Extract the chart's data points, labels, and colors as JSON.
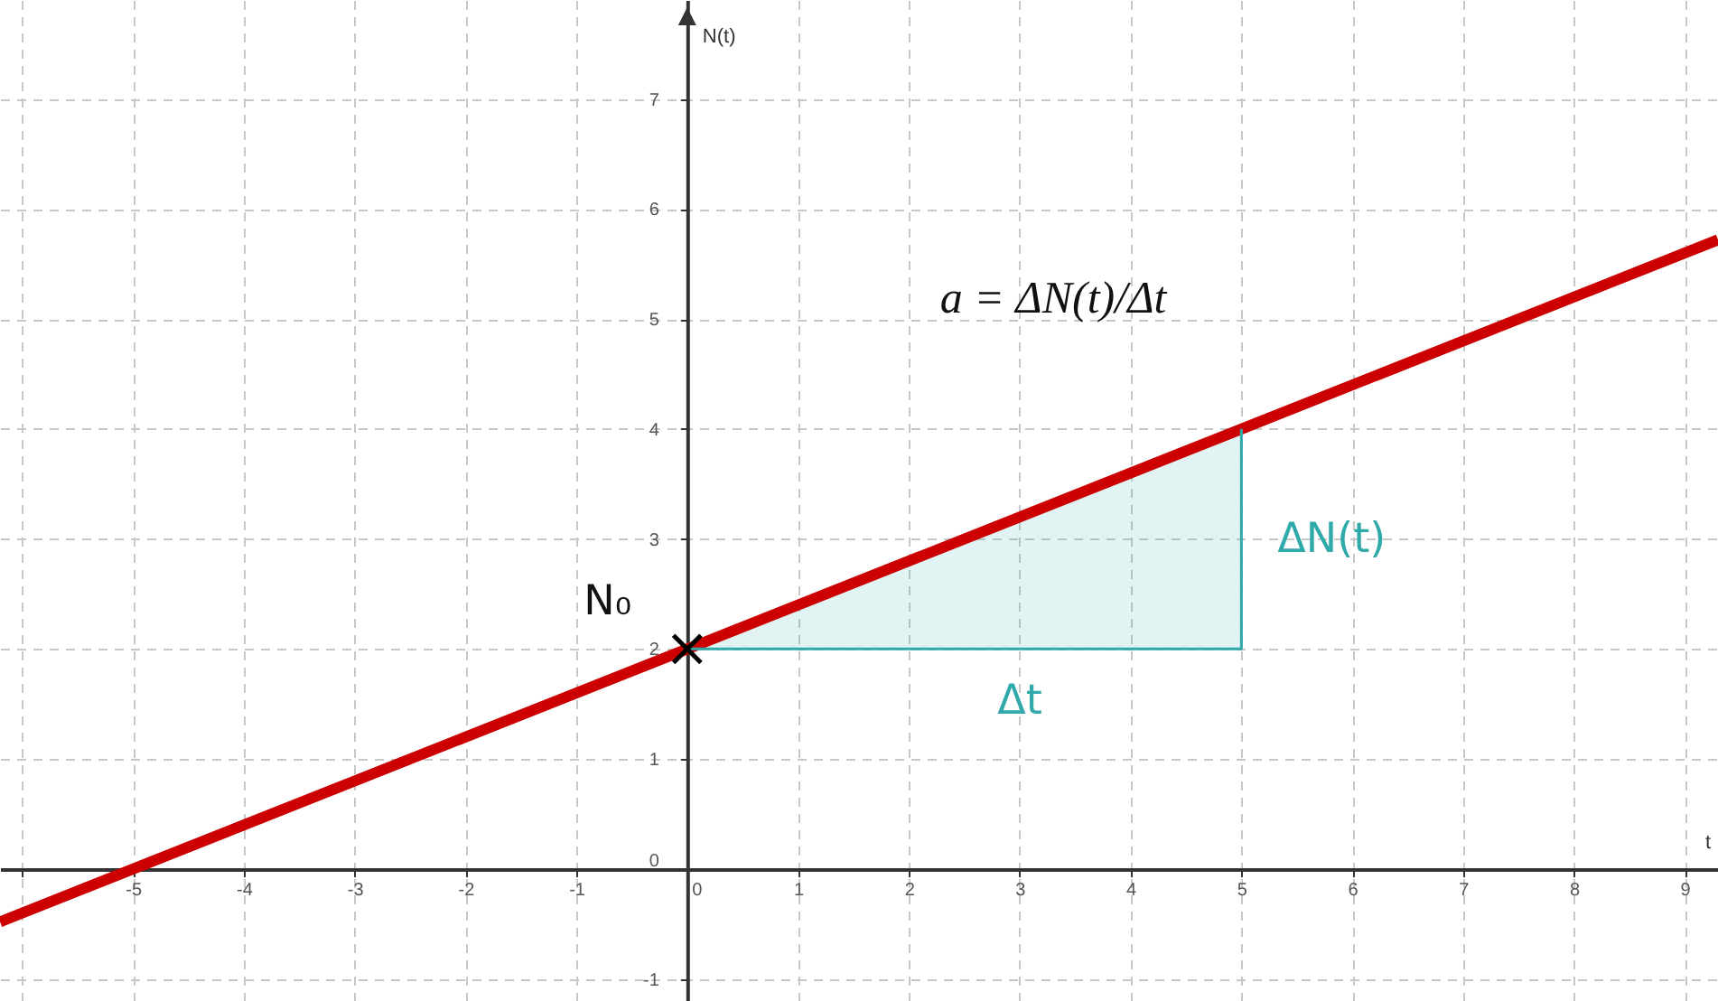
{
  "chart_data": {
    "type": "line",
    "xlabel": "t",
    "ylabel": "N(t)",
    "xlim": [
      -6.2,
      9.3
    ],
    "ylim": [
      -1.2,
      7.9
    ],
    "xticks": [
      {
        "value": -6,
        "label": null
      },
      -5,
      -4,
      -3,
      -2,
      -1,
      0,
      1,
      2,
      3,
      4,
      5,
      6,
      7,
      8,
      9
    ],
    "yticks": [
      -1,
      0,
      1,
      2,
      3,
      4,
      5,
      6,
      7
    ],
    "grid": true,
    "series": [
      {
        "color": "#cc0000",
        "x": [
          -6.2,
          -5,
          0,
          5,
          9.3
        ],
        "values": [
          -0.48,
          0,
          2,
          4,
          5.72
        ]
      },
      {
        "color": "#2fa9a9",
        "x": [
          0,
          5,
          5
        ],
        "values": [
          2,
          2,
          4
        ],
        "lower": [
          2,
          2,
          2
        ],
        "upper": [
          2,
          4,
          4
        ]
      },
      {
        "type": "scatter",
        "color": "#000000",
        "marker": "cross",
        "x": [
          0
        ],
        "values": [
          2
        ]
      }
    ],
    "annotations": [
      "a = ΔN(t)/Δt",
      {
        "text": "N₀",
        "x": 0,
        "y": 2
      },
      {
        "text": "ΔN(t)",
        "x": 5,
        "y": 3
      },
      {
        "text": "Δt",
        "x": 3,
        "y": 2
      }
    ]
  }
}
